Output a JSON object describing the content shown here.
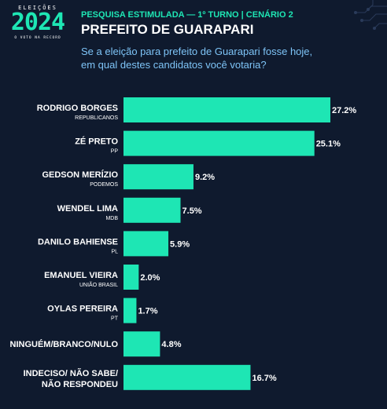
{
  "logo": {
    "top": "ELEIÇÕES",
    "year": "2024",
    "bottom": "O VOTO NA RECORD"
  },
  "header": {
    "kicker": "PESQUISA ESTIMULADA — 1º TURNO | CENÁRIO 2",
    "title": "PREFEITO DE GUARAPARI",
    "question_line1": "Se a eleição para prefeito de Guarapari fosse hoje,",
    "question_line2": "em qual destes candidatos você votaria?"
  },
  "colors": {
    "bar": "#1ee6b4",
    "background": "#0f1a2e",
    "accent": "#1ee6b4",
    "question": "#7ec4f7"
  },
  "chart_data": {
    "type": "bar",
    "orientation": "horizontal",
    "unit": "%",
    "categories": [
      {
        "name": [
          "RODRIGO BORGES"
        ],
        "party": "REPUBLICANOS",
        "value": 27.2,
        "label": "27.2%"
      },
      {
        "name": [
          "ZÉ PRETO"
        ],
        "party": "PP",
        "value": 25.1,
        "label": "25.1%"
      },
      {
        "name": [
          "GEDSON MERÍZIO"
        ],
        "party": "PODEMOS",
        "value": 9.2,
        "label": "9.2%"
      },
      {
        "name": [
          "WENDEL LIMA"
        ],
        "party": "MDB",
        "value": 7.5,
        "label": "7.5%"
      },
      {
        "name": [
          "DANILO BAHIENSE"
        ],
        "party": "PL",
        "value": 5.9,
        "label": "5.9%"
      },
      {
        "name": [
          "EMANUEL VIEIRA"
        ],
        "party": "UNIÃO BRASIL",
        "value": 2.0,
        "label": "2.0%"
      },
      {
        "name": [
          "OYLAS PEREIRA"
        ],
        "party": "PT",
        "value": 1.7,
        "label": "1.7%"
      },
      {
        "name": [
          "NINGUÉM/BRANCO/NULO"
        ],
        "party": "",
        "value": 4.8,
        "label": "4.8%"
      },
      {
        "name": [
          "INDECISO/ NÃO SABE/",
          "NÃO RESPONDEU"
        ],
        "party": "",
        "value": 16.7,
        "label": "16.7%"
      }
    ],
    "xlim": [
      0,
      27.2
    ]
  }
}
